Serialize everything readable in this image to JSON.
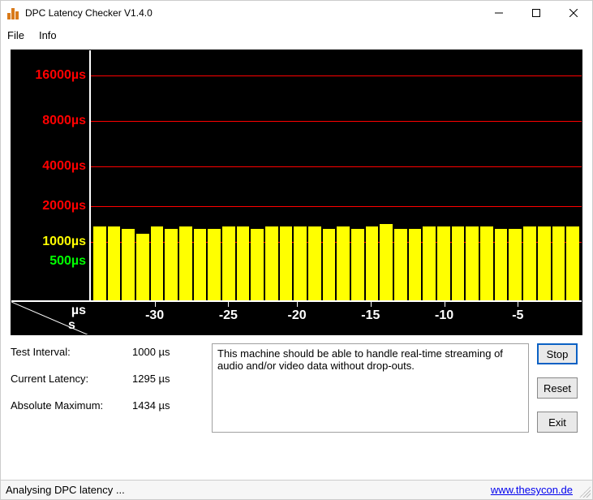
{
  "window": {
    "title": "DPC Latency Checker V1.4.0"
  },
  "menu": {
    "file": "File",
    "info": "Info"
  },
  "chart": {
    "type": "bar",
    "y_axis": {
      "labels": [
        {
          "text": "16000µs",
          "pos_pct": 10,
          "class": "red"
        },
        {
          "text": "8000µs",
          "pos_pct": 28,
          "class": "red"
        },
        {
          "text": "4000µs",
          "pos_pct": 46,
          "class": "red"
        },
        {
          "text": "2000µs",
          "pos_pct": 62,
          "class": "red"
        },
        {
          "text": "1000µs",
          "pos_pct": 76,
          "class": "yellow"
        },
        {
          "text": "500µs",
          "pos_pct": 84,
          "class": "green"
        }
      ],
      "gridlines_pct": [
        10,
        28,
        46,
        62,
        76
      ]
    },
    "x_axis": {
      "unit_top": "µs",
      "unit_bottom": "s",
      "ticks": [
        {
          "label": "-30",
          "pos_pct": 13
        },
        {
          "label": "-25",
          "pos_pct": 28
        },
        {
          "label": "-20",
          "pos_pct": 42
        },
        {
          "label": "-15",
          "pos_pct": 57
        },
        {
          "label": "-10",
          "pos_pct": 72
        },
        {
          "label": "-5",
          "pos_pct": 87
        }
      ]
    },
    "bars_height_pct": [
      30,
      30,
      29,
      27,
      30,
      29,
      30,
      29,
      29,
      30,
      30,
      29,
      30,
      30,
      30,
      30,
      29,
      30,
      29,
      30,
      31,
      29,
      29,
      30,
      30,
      30,
      30,
      30,
      29,
      29,
      30,
      30,
      30,
      30
    ],
    "bar_color": "#ffff00",
    "background_color": "#000000",
    "gridline_color": "#ff0000",
    "axis_color": "#ffffff"
  },
  "stats": {
    "test_interval_label": "Test Interval:",
    "test_interval_value": "1000 µs",
    "current_latency_label": "Current Latency:",
    "current_latency_value": "1295 µs",
    "absolute_max_label": "Absolute Maximum:",
    "absolute_max_value": "1434 µs"
  },
  "message": "This machine should be able to handle real-time streaming of audio and/or video data without drop-outs.",
  "buttons": {
    "stop": "Stop",
    "reset": "Reset",
    "exit": "Exit"
  },
  "status": {
    "text": "Analysing DPC latency ...",
    "link": "www.thesycon.de"
  }
}
